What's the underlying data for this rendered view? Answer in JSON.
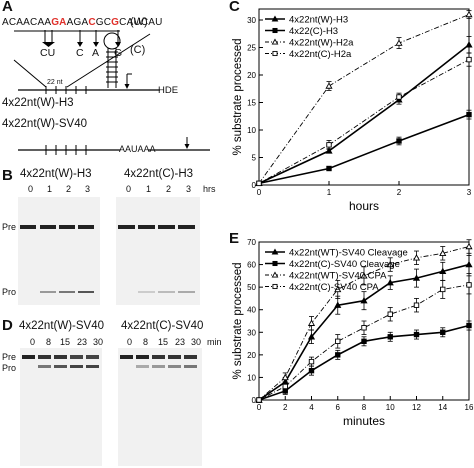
{
  "panelA": {
    "letter": "A",
    "seq_parts": [
      "ACAACAA",
      "GA",
      "AG",
      "A",
      "C",
      "G",
      "C",
      "G",
      "C",
      "AUCAU"
    ],
    "seq_red": [
      false,
      true,
      false,
      false,
      true,
      false,
      false,
      true,
      false,
      false
    ],
    "w_label": "(W)",
    "c_label": "(C)",
    "mutations": [
      "CU",
      "C",
      "A",
      "G"
    ],
    "nt_label": "22 nt",
    "hde": "HDE",
    "construct1": "4x22nt(W)-H3",
    "construct2": "4x22nt(W)-SV40",
    "aauaaa": "AAUAAA"
  },
  "panelB": {
    "letter": "B",
    "title_w": "4x22nt(W)-H3",
    "title_c": "4x22nt(C)-H3",
    "lanes_w": [
      "0",
      "1",
      "2",
      "3"
    ],
    "lanes_c": [
      "0",
      "1",
      "2",
      "3"
    ],
    "unit": "hrs",
    "pre": "Pre",
    "pro": "Pro"
  },
  "panelD": {
    "letter": "D",
    "title_w": "4x22nt(W)-SV40",
    "title_c": "4x22nt(C)-SV40",
    "lanes_w": [
      "0",
      "8",
      "15",
      "23",
      "30"
    ],
    "lanes_c": [
      "0",
      "8",
      "15",
      "23",
      "30"
    ],
    "unit": "min",
    "pre": "Pre",
    "pro": "Pro"
  },
  "chart_data": [
    {
      "panel": "C",
      "type": "line",
      "xlabel": "hours",
      "ylabel": "% substrate processed",
      "xlim": [
        0,
        3
      ],
      "ylim": [
        0,
        32
      ],
      "xticks": [
        0,
        1,
        2,
        3
      ],
      "yticks": [
        0,
        5,
        10,
        15,
        20,
        25,
        30
      ],
      "legend_position": "top-left",
      "x": [
        0,
        1,
        2,
        3
      ],
      "series": [
        {
          "name": "4x22nt(W)-H3",
          "values": [
            0.3,
            6.2,
            15.5,
            25.5
          ],
          "errors": [
            0.3,
            0.4,
            0.8,
            1.5
          ],
          "marker": "triangle-filled",
          "dash": "solid"
        },
        {
          "name": "4x22(C)-H3",
          "values": [
            0.3,
            3.0,
            8.0,
            12.8
          ],
          "errors": [
            0.3,
            0.3,
            0.7,
            0.8
          ],
          "marker": "square-filled",
          "dash": "solid"
        },
        {
          "name": "4x22nt(W)-H2a",
          "values": [
            0.3,
            18.0,
            25.8,
            31.0
          ],
          "errors": [
            0.3,
            0.8,
            1.0,
            0.7
          ],
          "marker": "triangle-open",
          "dash": "dashdot"
        },
        {
          "name": "4x22nt(C)-H2a",
          "values": [
            0.3,
            7.3,
            16.0,
            22.8
          ],
          "errors": [
            0.3,
            0.8,
            0.7,
            1.2
          ],
          "marker": "square-open",
          "dash": "dashdot"
        }
      ]
    },
    {
      "panel": "E",
      "type": "line",
      "xlabel": "minutes",
      "ylabel": "% substrate processed",
      "xlim": [
        0,
        16
      ],
      "ylim": [
        0,
        70
      ],
      "xticks": [
        0,
        2,
        4,
        6,
        8,
        10,
        12,
        14,
        16
      ],
      "yticks": [
        0,
        10,
        20,
        30,
        40,
        50,
        60,
        70
      ],
      "legend_position": "top-left",
      "x": [
        0,
        2,
        4,
        6,
        8,
        10,
        12,
        14,
        16
      ],
      "series": [
        {
          "name": "4x22nt(WT)-SV40 Cleavage",
          "values": [
            0,
            8,
            28,
            42,
            44,
            52,
            54,
            57,
            60
          ],
          "errors": [
            0,
            2,
            3,
            4,
            4,
            3,
            4,
            4,
            4
          ],
          "marker": "triangle-filled",
          "dash": "solid"
        },
        {
          "name": "4x22nt(C)-SV40 Cleavage",
          "values": [
            0,
            4,
            13,
            20,
            26,
            28,
            29,
            30,
            33
          ],
          "errors": [
            0,
            1.5,
            2,
            2,
            2,
            2,
            2,
            2,
            2
          ],
          "marker": "square-filled",
          "dash": "solid"
        },
        {
          "name": "4x22nt(WT)-SV40 CPA",
          "values": [
            0,
            10,
            34,
            49,
            55,
            60,
            63,
            65,
            68
          ],
          "errors": [
            0,
            2,
            3,
            4,
            4,
            3,
            3,
            3,
            3
          ],
          "marker": "triangle-open",
          "dash": "dashdot"
        },
        {
          "name": "4x22nt(C)-SV40 CPA",
          "values": [
            0,
            6,
            17,
            26,
            32,
            38,
            42,
            49,
            51
          ],
          "errors": [
            0,
            2,
            2,
            3,
            3,
            3,
            3,
            4,
            4
          ],
          "marker": "square-open",
          "dash": "dashdot"
        }
      ]
    }
  ],
  "panelC": {
    "letter": "C"
  },
  "panelE": {
    "letter": "E"
  }
}
